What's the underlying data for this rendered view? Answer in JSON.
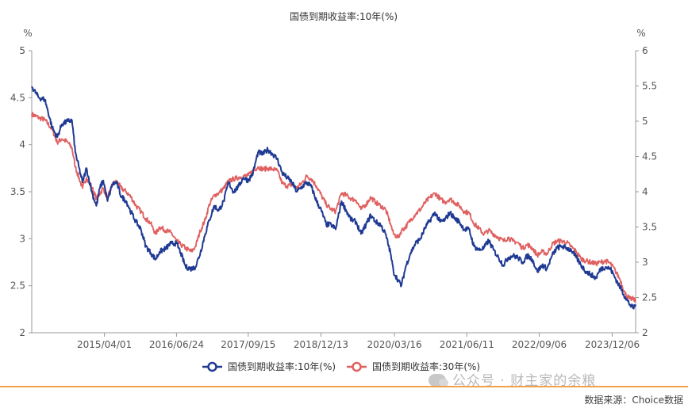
{
  "chart_data": {
    "type": "line",
    "title": "国债到期收益率:10年(%)",
    "y_left_unit": "%",
    "y_right_unit": "%",
    "y_left_range": [
      2,
      5
    ],
    "y_right_range": [
      2,
      6
    ],
    "y_left_ticks": [
      "2",
      "2.5",
      "3",
      "3.5",
      "4",
      "4.5",
      "5"
    ],
    "y_right_ticks": [
      "2",
      "2.5",
      "3",
      "3.5",
      "4",
      "4.5",
      "5",
      "5.5",
      "6"
    ],
    "x_range": [
      "2014-01-02",
      "2024-04-30"
    ],
    "x_ticks": [
      "2015/04/01",
      "2016/06/24",
      "2017/09/15",
      "2018/12/13",
      "2020/03/16",
      "2021/06/11",
      "2022/09/06",
      "2023/12/06"
    ],
    "grid": false,
    "legend_position": "bottom",
    "series": [
      {
        "name": "国债到期收益率:10年(%)",
        "axis": "left",
        "color": "#1f3a93",
        "points": [
          [
            "2014-01-02",
            4.62
          ],
          [
            "2014-02-15",
            4.5
          ],
          [
            "2014-03-25",
            4.48
          ],
          [
            "2014-05-10",
            4.18
          ],
          [
            "2014-06-10",
            4.08
          ],
          [
            "2014-07-10",
            4.22
          ],
          [
            "2014-08-15",
            4.25
          ],
          [
            "2014-09-10",
            4.26
          ],
          [
            "2014-10-01",
            3.92
          ],
          [
            "2014-11-15",
            3.6
          ],
          [
            "2014-12-10",
            3.75
          ],
          [
            "2015-01-15",
            3.48
          ],
          [
            "2015-02-10",
            3.35
          ],
          [
            "2015-03-05",
            3.55
          ],
          [
            "2015-03-25",
            3.62
          ],
          [
            "2015-04-20",
            3.4
          ],
          [
            "2015-05-20",
            3.58
          ],
          [
            "2015-06-15",
            3.6
          ],
          [
            "2015-07-15",
            3.45
          ],
          [
            "2015-08-15",
            3.4
          ],
          [
            "2015-09-15",
            3.28
          ],
          [
            "2015-10-15",
            3.18
          ],
          [
            "2015-11-15",
            3.1
          ],
          [
            "2015-12-15",
            2.92
          ],
          [
            "2016-01-15",
            2.85
          ],
          [
            "2016-02-15",
            2.78
          ],
          [
            "2016-03-10",
            2.86
          ],
          [
            "2016-04-20",
            2.9
          ],
          [
            "2016-05-20",
            2.95
          ],
          [
            "2016-06-25",
            2.95
          ],
          [
            "2016-07-20",
            2.85
          ],
          [
            "2016-08-20",
            2.7
          ],
          [
            "2016-09-25",
            2.68
          ],
          [
            "2016-10-20",
            2.7
          ],
          [
            "2016-11-20",
            2.85
          ],
          [
            "2016-12-20",
            3.05
          ],
          [
            "2017-01-15",
            3.2
          ],
          [
            "2017-02-15",
            3.35
          ],
          [
            "2017-03-15",
            3.3
          ],
          [
            "2017-04-15",
            3.4
          ],
          [
            "2017-05-15",
            3.6
          ],
          [
            "2017-06-15",
            3.5
          ],
          [
            "2017-07-15",
            3.55
          ],
          [
            "2017-08-15",
            3.65
          ],
          [
            "2017-09-15",
            3.62
          ],
          [
            "2017-10-15",
            3.7
          ],
          [
            "2017-11-15",
            3.92
          ],
          [
            "2017-12-15",
            3.9
          ],
          [
            "2018-01-15",
            3.95
          ],
          [
            "2018-02-15",
            3.9
          ],
          [
            "2018-03-15",
            3.85
          ],
          [
            "2018-04-15",
            3.7
          ],
          [
            "2018-05-15",
            3.65
          ],
          [
            "2018-06-15",
            3.6
          ],
          [
            "2018-07-15",
            3.5
          ],
          [
            "2018-08-15",
            3.55
          ],
          [
            "2018-09-15",
            3.6
          ],
          [
            "2018-10-15",
            3.55
          ],
          [
            "2018-11-15",
            3.4
          ],
          [
            "2018-12-15",
            3.3
          ],
          [
            "2019-01-15",
            3.15
          ],
          [
            "2019-02-15",
            3.15
          ],
          [
            "2019-03-15",
            3.1
          ],
          [
            "2019-04-20",
            3.4
          ],
          [
            "2019-05-20",
            3.3
          ],
          [
            "2019-06-20",
            3.2
          ],
          [
            "2019-07-20",
            3.18
          ],
          [
            "2019-08-20",
            3.05
          ],
          [
            "2019-09-20",
            3.15
          ],
          [
            "2019-10-20",
            3.25
          ],
          [
            "2019-11-20",
            3.18
          ],
          [
            "2019-12-20",
            3.15
          ],
          [
            "2020-01-20",
            3.05
          ],
          [
            "2020-02-20",
            2.85
          ],
          [
            "2020-03-10",
            2.65
          ],
          [
            "2020-04-10",
            2.55
          ],
          [
            "2020-04-28",
            2.5
          ],
          [
            "2020-05-25",
            2.7
          ],
          [
            "2020-06-25",
            2.85
          ],
          [
            "2020-07-25",
            2.95
          ],
          [
            "2020-08-25",
            3.0
          ],
          [
            "2020-09-25",
            3.12
          ],
          [
            "2020-10-25",
            3.2
          ],
          [
            "2020-11-25",
            3.28
          ],
          [
            "2020-12-25",
            3.18
          ],
          [
            "2021-01-25",
            3.2
          ],
          [
            "2021-02-25",
            3.28
          ],
          [
            "2021-03-25",
            3.22
          ],
          [
            "2021-04-25",
            3.18
          ],
          [
            "2021-05-25",
            3.1
          ],
          [
            "2021-06-25",
            3.1
          ],
          [
            "2021-07-25",
            2.92
          ],
          [
            "2021-08-25",
            2.88
          ],
          [
            "2021-09-25",
            2.9
          ],
          [
            "2021-10-25",
            2.98
          ],
          [
            "2021-11-25",
            2.88
          ],
          [
            "2021-12-25",
            2.8
          ],
          [
            "2022-01-25",
            2.72
          ],
          [
            "2022-02-25",
            2.8
          ],
          [
            "2022-03-25",
            2.82
          ],
          [
            "2022-04-25",
            2.8
          ],
          [
            "2022-05-25",
            2.75
          ],
          [
            "2022-06-25",
            2.82
          ],
          [
            "2022-07-25",
            2.78
          ],
          [
            "2022-08-25",
            2.65
          ],
          [
            "2022-09-25",
            2.72
          ],
          [
            "2022-10-25",
            2.68
          ],
          [
            "2022-11-25",
            2.82
          ],
          [
            "2022-12-25",
            2.9
          ],
          [
            "2023-01-25",
            2.92
          ],
          [
            "2023-02-25",
            2.9
          ],
          [
            "2023-03-25",
            2.88
          ],
          [
            "2023-04-25",
            2.8
          ],
          [
            "2023-05-25",
            2.72
          ],
          [
            "2023-06-25",
            2.65
          ],
          [
            "2023-07-25",
            2.62
          ],
          [
            "2023-08-25",
            2.58
          ],
          [
            "2023-09-25",
            2.68
          ],
          [
            "2023-10-25",
            2.7
          ],
          [
            "2023-11-25",
            2.68
          ],
          [
            "2023-12-25",
            2.58
          ],
          [
            "2024-01-25",
            2.48
          ],
          [
            "2024-02-25",
            2.38
          ],
          [
            "2024-03-25",
            2.3
          ],
          [
            "2024-04-15",
            2.26
          ],
          [
            "2024-04-30",
            2.3
          ]
        ]
      },
      {
        "name": "国债到期收益率:30年(%)",
        "axis": "right",
        "color": "#e06060",
        "points": [
          [
            "2014-01-02",
            5.1
          ],
          [
            "2014-02-15",
            5.05
          ],
          [
            "2014-03-25",
            5.02
          ],
          [
            "2014-05-10",
            4.88
          ],
          [
            "2014-06-10",
            4.7
          ],
          [
            "2014-07-10",
            4.75
          ],
          [
            "2014-08-15",
            4.7
          ],
          [
            "2014-09-10",
            4.62
          ],
          [
            "2014-10-01",
            4.35
          ],
          [
            "2014-11-15",
            4.05
          ],
          [
            "2014-12-10",
            4.2
          ],
          [
            "2015-01-15",
            4.05
          ],
          [
            "2015-02-10",
            3.9
          ],
          [
            "2015-03-05",
            3.98
          ],
          [
            "2015-03-25",
            4.05
          ],
          [
            "2015-04-20",
            3.9
          ],
          [
            "2015-05-20",
            4.1
          ],
          [
            "2015-06-15",
            4.15
          ],
          [
            "2015-07-15",
            4.05
          ],
          [
            "2015-08-15",
            4.0
          ],
          [
            "2015-09-15",
            3.92
          ],
          [
            "2015-10-15",
            3.8
          ],
          [
            "2015-11-15",
            3.72
          ],
          [
            "2015-12-15",
            3.62
          ],
          [
            "2016-01-15",
            3.55
          ],
          [
            "2016-02-15",
            3.4
          ],
          [
            "2016-03-10",
            3.5
          ],
          [
            "2016-04-20",
            3.45
          ],
          [
            "2016-05-20",
            3.42
          ],
          [
            "2016-06-25",
            3.3
          ],
          [
            "2016-07-20",
            3.25
          ],
          [
            "2016-08-20",
            3.2
          ],
          [
            "2016-09-25",
            3.15
          ],
          [
            "2016-10-20",
            3.22
          ],
          [
            "2016-11-20",
            3.45
          ],
          [
            "2016-12-20",
            3.6
          ],
          [
            "2017-01-15",
            3.82
          ],
          [
            "2017-02-15",
            3.95
          ],
          [
            "2017-03-15",
            3.98
          ],
          [
            "2017-04-15",
            4.05
          ],
          [
            "2017-05-15",
            4.15
          ],
          [
            "2017-06-15",
            4.18
          ],
          [
            "2017-07-15",
            4.2
          ],
          [
            "2017-08-15",
            4.22
          ],
          [
            "2017-09-15",
            4.23
          ],
          [
            "2017-10-15",
            4.3
          ],
          [
            "2017-11-15",
            4.35
          ],
          [
            "2017-12-15",
            4.32
          ],
          [
            "2018-01-15",
            4.33
          ],
          [
            "2018-02-15",
            4.32
          ],
          [
            "2018-03-15",
            4.3
          ],
          [
            "2018-04-15",
            4.12
          ],
          [
            "2018-05-15",
            4.08
          ],
          [
            "2018-06-15",
            4.1
          ],
          [
            "2018-07-15",
            4.05
          ],
          [
            "2018-08-15",
            4.12
          ],
          [
            "2018-09-15",
            4.22
          ],
          [
            "2018-10-15",
            4.18
          ],
          [
            "2018-11-15",
            4.08
          ],
          [
            "2018-12-15",
            3.95
          ],
          [
            "2019-01-15",
            3.82
          ],
          [
            "2019-02-15",
            3.75
          ],
          [
            "2019-03-15",
            3.72
          ],
          [
            "2019-04-20",
            3.98
          ],
          [
            "2019-05-20",
            3.95
          ],
          [
            "2019-06-20",
            3.9
          ],
          [
            "2019-07-20",
            3.88
          ],
          [
            "2019-08-20",
            3.75
          ],
          [
            "2019-09-20",
            3.82
          ],
          [
            "2019-10-20",
            3.92
          ],
          [
            "2019-11-20",
            3.85
          ],
          [
            "2019-12-20",
            3.8
          ],
          [
            "2020-01-20",
            3.75
          ],
          [
            "2020-02-20",
            3.55
          ],
          [
            "2020-03-10",
            3.4
          ],
          [
            "2020-04-10",
            3.35
          ],
          [
            "2020-04-28",
            3.45
          ],
          [
            "2020-05-25",
            3.5
          ],
          [
            "2020-06-25",
            3.6
          ],
          [
            "2020-07-25",
            3.68
          ],
          [
            "2020-08-25",
            3.75
          ],
          [
            "2020-09-25",
            3.85
          ],
          [
            "2020-10-25",
            3.92
          ],
          [
            "2020-11-25",
            3.98
          ],
          [
            "2020-12-25",
            3.9
          ],
          [
            "2021-01-25",
            3.85
          ],
          [
            "2021-02-25",
            3.9
          ],
          [
            "2021-03-25",
            3.85
          ],
          [
            "2021-04-25",
            3.8
          ],
          [
            "2021-05-25",
            3.72
          ],
          [
            "2021-06-25",
            3.7
          ],
          [
            "2021-07-25",
            3.55
          ],
          [
            "2021-08-25",
            3.48
          ],
          [
            "2021-09-25",
            3.4
          ],
          [
            "2021-10-25",
            3.45
          ],
          [
            "2021-11-25",
            3.4
          ],
          [
            "2021-12-25",
            3.35
          ],
          [
            "2022-01-25",
            3.3
          ],
          [
            "2022-02-25",
            3.35
          ],
          [
            "2022-03-25",
            3.3
          ],
          [
            "2022-04-25",
            3.28
          ],
          [
            "2022-05-25",
            3.2
          ],
          [
            "2022-06-25",
            3.25
          ],
          [
            "2022-07-25",
            3.2
          ],
          [
            "2022-08-25",
            3.1
          ],
          [
            "2022-09-25",
            3.15
          ],
          [
            "2022-10-25",
            3.12
          ],
          [
            "2022-11-25",
            3.25
          ],
          [
            "2022-12-25",
            3.3
          ],
          [
            "2023-01-25",
            3.3
          ],
          [
            "2023-02-25",
            3.28
          ],
          [
            "2023-03-25",
            3.22
          ],
          [
            "2023-04-25",
            3.15
          ],
          [
            "2023-05-25",
            3.05
          ],
          [
            "2023-06-25",
            3.02
          ],
          [
            "2023-07-25",
            3.0
          ],
          [
            "2023-08-25",
            2.98
          ],
          [
            "2023-09-25",
            3.0
          ],
          [
            "2023-10-25",
            3.02
          ],
          [
            "2023-11-25",
            2.98
          ],
          [
            "2023-12-25",
            2.88
          ],
          [
            "2024-01-25",
            2.75
          ],
          [
            "2024-02-25",
            2.55
          ],
          [
            "2024-03-25",
            2.48
          ],
          [
            "2024-04-15",
            2.48
          ],
          [
            "2024-04-30",
            2.45
          ]
        ]
      }
    ]
  },
  "watermark": "公众号 · 财主家的余粮",
  "source": "数据来源：Choice数据"
}
